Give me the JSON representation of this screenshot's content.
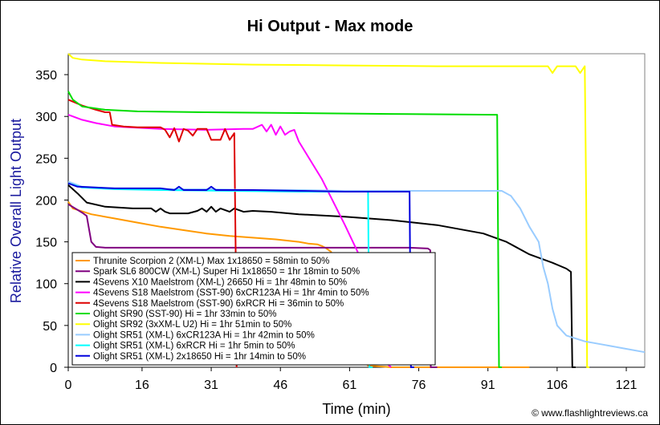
{
  "chart_data": {
    "type": "line",
    "title": "Hi Output - Max mode",
    "xlabel": "Time (min)",
    "ylabel": "Relative Overall Light Output",
    "credit": "© www.flashlightreviews.ca",
    "xlim": [
      0,
      125
    ],
    "ylim": [
      0,
      375
    ],
    "xticks": [
      0,
      16,
      31,
      46,
      61,
      76,
      91,
      106,
      121
    ],
    "yticks": [
      0,
      50,
      100,
      150,
      200,
      250,
      300,
      350
    ],
    "grid": false,
    "legend_position": "bottom-left",
    "series": [
      {
        "name": "Thrunite Scorpion 2 (XM-L) Max 1x18650 = 58min to 50%",
        "color": "#ff9900",
        "points": [
          [
            0,
            198
          ],
          [
            1,
            190
          ],
          [
            5,
            183
          ],
          [
            10,
            178
          ],
          [
            15,
            173
          ],
          [
            20,
            168
          ],
          [
            25,
            164
          ],
          [
            30,
            160
          ],
          [
            35,
            157
          ],
          [
            40,
            155
          ],
          [
            45,
            153
          ],
          [
            50,
            150
          ],
          [
            52,
            148
          ],
          [
            54,
            147
          ],
          [
            55,
            145
          ],
          [
            56,
            142
          ],
          [
            57,
            138
          ],
          [
            58,
            110
          ],
          [
            60,
            70
          ],
          [
            62,
            30
          ],
          [
            64,
            8
          ],
          [
            65,
            2
          ],
          [
            70,
            0
          ],
          [
            80,
            0
          ],
          [
            90,
            0
          ],
          [
            100,
            0
          ]
        ]
      },
      {
        "name": "Spark SL6 800CW (XM-L) Super Hi 1x18650 = 1hr 18min to 50%",
        "color": "#800080",
        "points": [
          [
            0,
            195
          ],
          [
            3,
            185
          ],
          [
            4,
            181
          ],
          [
            5,
            150
          ],
          [
            6,
            144
          ],
          [
            8,
            143
          ],
          [
            20,
            143
          ],
          [
            40,
            143
          ],
          [
            60,
            143
          ],
          [
            70,
            143
          ],
          [
            74,
            143
          ],
          [
            78,
            142
          ],
          [
            78.5,
            140
          ],
          [
            78.6,
            0
          ],
          [
            80,
            0
          ]
        ]
      },
      {
        "name": "4Sevens X10 Maelstrom (XM-L) 26650 Hi = 1hr 48min to 50%",
        "color": "#000000",
        "points": [
          [
            0,
            218
          ],
          [
            2,
            208
          ],
          [
            4,
            197
          ],
          [
            8,
            192
          ],
          [
            14,
            190
          ],
          [
            18,
            190
          ],
          [
            19,
            186
          ],
          [
            20,
            190
          ],
          [
            21,
            186
          ],
          [
            22,
            184
          ],
          [
            26,
            184
          ],
          [
            28,
            187
          ],
          [
            29,
            190
          ],
          [
            30,
            186
          ],
          [
            31,
            192
          ],
          [
            32,
            186
          ],
          [
            33,
            190
          ],
          [
            35,
            186
          ],
          [
            36,
            190
          ],
          [
            38,
            186
          ],
          [
            40,
            187
          ],
          [
            44,
            186
          ],
          [
            50,
            183
          ],
          [
            60,
            180
          ],
          [
            70,
            176
          ],
          [
            80,
            170
          ],
          [
            90,
            160
          ],
          [
            95,
            150
          ],
          [
            100,
            135
          ],
          [
            105,
            125
          ],
          [
            108,
            118
          ],
          [
            109,
            114
          ],
          [
            109.3,
            0
          ],
          [
            110,
            0
          ]
        ]
      },
      {
        "name": "4Sevens S18 Maelstrom (SST-90) 6xCR123A Hi = 1hr 4min to 50%",
        "color": "#ff00ff",
        "points": [
          [
            0,
            302
          ],
          [
            3,
            296
          ],
          [
            6,
            292
          ],
          [
            10,
            288
          ],
          [
            20,
            285
          ],
          [
            30,
            284
          ],
          [
            38,
            285
          ],
          [
            40,
            285
          ],
          [
            42,
            290
          ],
          [
            43,
            282
          ],
          [
            44,
            290
          ],
          [
            45,
            278
          ],
          [
            46,
            288
          ],
          [
            47,
            278
          ],
          [
            48,
            282
          ],
          [
            49,
            284
          ],
          [
            50,
            270
          ],
          [
            55,
            225
          ],
          [
            60,
            170
          ],
          [
            63,
            135
          ],
          [
            65,
            100
          ],
          [
            66,
            70
          ],
          [
            67,
            40
          ],
          [
            68,
            15
          ],
          [
            69,
            5
          ],
          [
            70,
            0
          ]
        ]
      },
      {
        "name": "4Sevens S18 Maelstrom (SST-90) 6xRCR Hi = 36min to 50%",
        "color": "#dd0000",
        "points": [
          [
            0,
            320
          ],
          [
            3,
            313
          ],
          [
            6,
            308
          ],
          [
            8,
            305
          ],
          [
            9,
            305
          ],
          [
            9.5,
            290
          ],
          [
            12,
            288
          ],
          [
            15,
            287
          ],
          [
            20,
            287
          ],
          [
            21,
            284
          ],
          [
            22,
            275
          ],
          [
            23,
            286
          ],
          [
            24,
            270
          ],
          [
            25,
            285
          ],
          [
            26,
            283
          ],
          [
            27,
            277
          ],
          [
            28,
            285
          ],
          [
            30,
            285
          ],
          [
            31,
            272
          ],
          [
            33,
            272
          ],
          [
            34,
            285
          ],
          [
            35,
            272
          ],
          [
            36,
            280
          ],
          [
            36.3,
            140
          ],
          [
            36.5,
            0
          ]
        ]
      },
      {
        "name": "Olight SR90 (SST-90) Hi = 1hr 33min to 50%",
        "color": "#00dd00",
        "points": [
          [
            0,
            330
          ],
          [
            1,
            320
          ],
          [
            3,
            312
          ],
          [
            8,
            308
          ],
          [
            15,
            306
          ],
          [
            30,
            305
          ],
          [
            50,
            304
          ],
          [
            70,
            303
          ],
          [
            93,
            302
          ],
          [
            93.4,
            0
          ],
          [
            94,
            0
          ]
        ]
      },
      {
        "name": "Olight SR92 (3xXM-L U2) Hi = 1hr 51min to 50%",
        "color": "#ffff00",
        "points": [
          [
            0,
            375
          ],
          [
            1,
            370
          ],
          [
            3,
            368
          ],
          [
            8,
            366
          ],
          [
            20,
            364
          ],
          [
            40,
            362
          ],
          [
            60,
            361
          ],
          [
            80,
            360
          ],
          [
            100,
            360
          ],
          [
            104,
            360
          ],
          [
            105,
            352
          ],
          [
            106,
            360
          ],
          [
            110,
            360
          ],
          [
            111,
            352
          ],
          [
            112,
            360
          ],
          [
            112.3,
            200
          ],
          [
            112.5,
            0
          ],
          [
            113,
            0
          ]
        ]
      },
      {
        "name": "Olight SR51 (XM-L) 6xCR123A Hi = 1hr 42min to 50%",
        "color": "#99ccff",
        "points": [
          [
            0,
            222
          ],
          [
            3,
            216
          ],
          [
            10,
            214
          ],
          [
            20,
            213
          ],
          [
            30,
            213
          ],
          [
            40,
            212
          ],
          [
            50,
            212
          ],
          [
            60,
            211
          ],
          [
            70,
            211
          ],
          [
            80,
            211
          ],
          [
            90,
            211
          ],
          [
            94,
            211
          ],
          [
            96,
            205
          ],
          [
            98,
            190
          ],
          [
            100,
            168
          ],
          [
            102,
            150
          ],
          [
            103,
            120
          ],
          [
            104,
            100
          ],
          [
            105,
            70
          ],
          [
            106,
            50
          ],
          [
            108,
            38
          ],
          [
            112,
            31
          ],
          [
            116,
            27
          ],
          [
            120,
            23
          ],
          [
            125,
            18
          ]
        ]
      },
      {
        "name": "Olight SR51 (XM-L) 6xRCR Hi = 1hr 5min to 50%",
        "color": "#00ffff",
        "points": [
          [
            0,
            220
          ],
          [
            3,
            215
          ],
          [
            10,
            213
          ],
          [
            20,
            212
          ],
          [
            35,
            211
          ],
          [
            50,
            210
          ],
          [
            60,
            210
          ],
          [
            65,
            210
          ],
          [
            65.3,
            0
          ],
          [
            66,
            0
          ]
        ]
      },
      {
        "name": "Olight SR51 (XM-L) 2x18650 Hi = 1hr 14min to 50%",
        "color": "#0000dd",
        "points": [
          [
            0,
            220
          ],
          [
            2,
            216
          ],
          [
            10,
            214
          ],
          [
            20,
            214
          ],
          [
            23,
            212
          ],
          [
            24,
            216
          ],
          [
            25,
            212
          ],
          [
            30,
            212
          ],
          [
            31,
            216
          ],
          [
            32,
            212
          ],
          [
            40,
            212
          ],
          [
            50,
            211
          ],
          [
            60,
            210
          ],
          [
            70,
            210
          ],
          [
            74,
            210
          ],
          [
            74.3,
            0
          ],
          [
            75,
            0
          ]
        ]
      }
    ]
  }
}
